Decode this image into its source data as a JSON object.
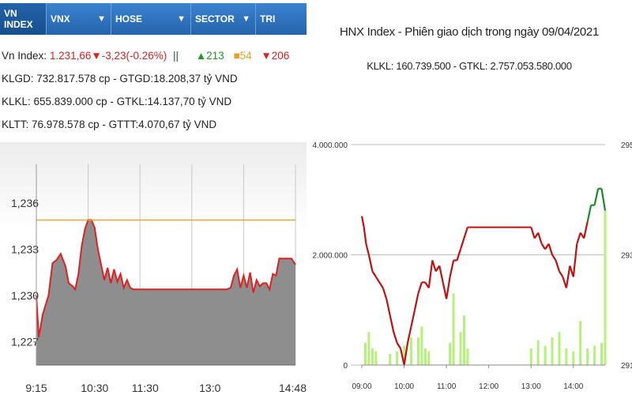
{
  "tabs": [
    {
      "label": "VN INDEX",
      "active": true
    },
    {
      "label": "VNX",
      "active": false
    },
    {
      "label": "HOSE",
      "active": false
    },
    {
      "label": "SECTOR",
      "active": false
    },
    {
      "label": "TRI",
      "active": false
    }
  ],
  "info": {
    "vn_label": "Vn Index:",
    "vn_value": "1.231,66▼-3,23(-0.26%)",
    "separator": "||",
    "advances": "▲213",
    "unchanged": "■54",
    "declines": "▼206",
    "klgd": "KLGD: 732.817.578 cp - GTGD:18.208,37 tỷ VND",
    "klkl": "KLKL: 655.839.000 cp - GTKL:14.137,70 tỷ VND",
    "kltt": "KLTT: 76.978.578 cp - GTTT:4.070,67 tỷ VND"
  },
  "colors": {
    "up": "#1a9c2a",
    "down": "#e02020",
    "unchanged": "#e8a020",
    "tab_bg": "#2b6fb9",
    "area_fill": "#8e8e8e",
    "reference_line": "#e6a93a",
    "volume": "#b5f07a"
  },
  "chart_data": [
    {
      "type": "area",
      "name": "VN Index intraday",
      "x_ticks": [
        "9:15",
        "10:30",
        "11:30",
        "13:0",
        "14:48"
      ],
      "y_ticks": [
        "1,227",
        "1,230",
        "1,233",
        "1,236"
      ],
      "ylim": [
        1225.5,
        1238.5
      ],
      "reference": 1234.89,
      "x": [
        0,
        3,
        8,
        15,
        20,
        25,
        30,
        36,
        40,
        45,
        48,
        52,
        56,
        60,
        64,
        68,
        72,
        76,
        80,
        84,
        88,
        92,
        96,
        100,
        104,
        108,
        112,
        116,
        120,
        126,
        132,
        138,
        144,
        150,
        156,
        160,
        166,
        172,
        180,
        190,
        200,
        210,
        220,
        230,
        235,
        240,
        244,
        248,
        252,
        256,
        260,
        264,
        268,
        272,
        276,
        280,
        284,
        288,
        292,
        296,
        300,
        306,
        310,
        315,
        320
      ],
      "values": [
        1230.0,
        1227.3,
        1228.8,
        1230.0,
        1232.1,
        1232.3,
        1232.7,
        1231.9,
        1230.8,
        1230.6,
        1230.4,
        1231.4,
        1233.2,
        1234.3,
        1234.9,
        1234.9,
        1234.4,
        1233.0,
        1232.0,
        1231.0,
        1231.8,
        1230.8,
        1231.7,
        1230.9,
        1231.4,
        1230.5,
        1231.0,
        1230.5,
        1230.4,
        1230.4,
        1230.4,
        1230.4,
        1230.4,
        1230.4,
        1230.4,
        1230.4,
        1230.4,
        1230.4,
        1230.4,
        1230.4,
        1230.4,
        1230.4,
        1230.4,
        1230.4,
        1230.4,
        1230.5,
        1231.3,
        1231.7,
        1230.5,
        1231.3,
        1230.5,
        1231.5,
        1230.2,
        1231.0,
        1230.6,
        1230.8,
        1230.8,
        1230.4,
        1231.4,
        1231.3,
        1232.4,
        1232.4,
        1232.4,
        1232.4,
        1232.0
      ]
    },
    {
      "type": "line",
      "title": "HNX Index - Phiên giao dịch trong ngày 09/04/2021",
      "subtitle": "KLKL: 160.739.500 - GTKL: 2.757.053.580.000",
      "x_ticks": [
        "09:00",
        "10:00",
        "11:00",
        "12:00",
        "13:00",
        "14:00"
      ],
      "y_ticks_left": [
        "0",
        "2.000.000",
        "4.000.000"
      ],
      "y_ticks_right": [
        "291",
        "293",
        "295"
      ],
      "x_range": [
        "09:00",
        "14:45"
      ],
      "ylim_left": [
        0,
        4000000
      ],
      "ylim_right": [
        291,
        295
      ],
      "reference": 293.72,
      "series": [
        {
          "values_time": [
            "09:00",
            "09:03",
            "09:06",
            "09:10",
            "09:15",
            "09:20",
            "09:25",
            "09:30",
            "09:35",
            "09:40",
            "09:45",
            "09:50",
            "09:55",
            "10:00",
            "10:05",
            "10:10",
            "10:15",
            "10:20",
            "10:25",
            "10:30",
            "10:35",
            "10:40",
            "10:45",
            "10:50",
            "10:55",
            "11:00",
            "11:05",
            "11:10",
            "11:15",
            "11:20",
            "11:25",
            "11:30",
            "13:00",
            "13:05",
            "13:10",
            "13:15",
            "13:20",
            "13:25",
            "13:30",
            "13:35",
            "13:40",
            "13:45",
            "13:50",
            "13:55",
            "14:00",
            "14:05",
            "14:10",
            "14:15",
            "14:20",
            "14:25",
            "14:30",
            "14:35",
            "14:40",
            "14:45"
          ],
          "values": [
            293.7,
            293.5,
            293.2,
            293.0,
            292.7,
            292.6,
            292.5,
            292.4,
            292.2,
            291.9,
            291.6,
            291.4,
            291.3,
            291.0,
            291.4,
            291.7,
            292.0,
            292.3,
            292.5,
            292.5,
            292.4,
            292.9,
            292.7,
            292.8,
            292.5,
            292.2,
            292.6,
            292.9,
            292.9,
            293.1,
            293.3,
            293.5,
            293.5,
            293.3,
            293.4,
            293.2,
            293.1,
            293.2,
            293.0,
            292.9,
            292.7,
            292.6,
            292.4,
            292.8,
            292.6,
            293.2,
            293.4,
            293.3,
            293.6,
            293.9,
            293.9,
            294.2,
            294.2,
            293.8
          ]
        },
        {
          "volume_time": [
            "09:05",
            "09:10",
            "09:15",
            "09:20",
            "09:40",
            "09:50",
            "10:00",
            "10:10",
            "10:20",
            "10:25",
            "10:30",
            "10:35",
            "11:05",
            "11:10",
            "11:20",
            "11:25",
            "11:30",
            "13:00",
            "13:10",
            "13:20",
            "13:30",
            "13:40",
            "13:50",
            "14:00",
            "14:10",
            "14:20",
            "14:30",
            "14:40",
            "14:45"
          ],
          "volume": [
            400000,
            600000,
            300000,
            250000,
            200000,
            250000,
            350000,
            500000,
            500000,
            700000,
            300000,
            250000,
            400000,
            1300000,
            600000,
            900000,
            300000,
            300000,
            450000,
            350000,
            500000,
            600000,
            300000,
            250000,
            800000,
            300000,
            350000,
            400000,
            2800000
          ]
        }
      ]
    }
  ]
}
